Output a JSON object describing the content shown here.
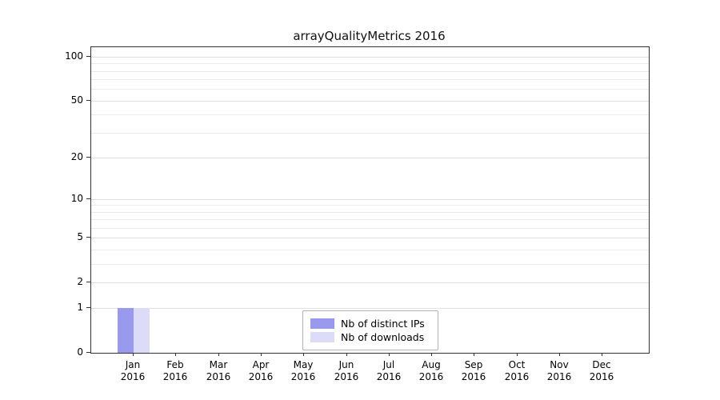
{
  "chart_data": {
    "type": "bar",
    "title": "arrayQualityMetrics 2016",
    "categories": [
      "Jan",
      "Feb",
      "Mar",
      "Apr",
      "May",
      "Jun",
      "Jul",
      "Aug",
      "Sep",
      "Oct",
      "Nov",
      "Dec"
    ],
    "category_year": "2016",
    "series": [
      {
        "name": "Nb of distinct IPs",
        "color": "#9999ee",
        "values": [
          1,
          0,
          0,
          0,
          0,
          0,
          0,
          0,
          0,
          0,
          0,
          0
        ]
      },
      {
        "name": "Nb of downloads",
        "color": "#dcdcf8",
        "values": [
          1,
          0,
          0,
          0,
          0,
          0,
          0,
          0,
          0,
          0,
          0,
          0
        ]
      }
    ],
    "y_ticks": [
      0,
      1,
      2,
      5,
      10,
      20,
      50,
      100
    ],
    "gridline_values": [
      1,
      2,
      3,
      4,
      5,
      6,
      7,
      8,
      9,
      10,
      20,
      30,
      40,
      50,
      60,
      70,
      80,
      90,
      100
    ],
    "scale": "log1p",
    "ylim": [
      0,
      100
    ],
    "grid": true,
    "legend_position": "inside-bottom-center"
  }
}
